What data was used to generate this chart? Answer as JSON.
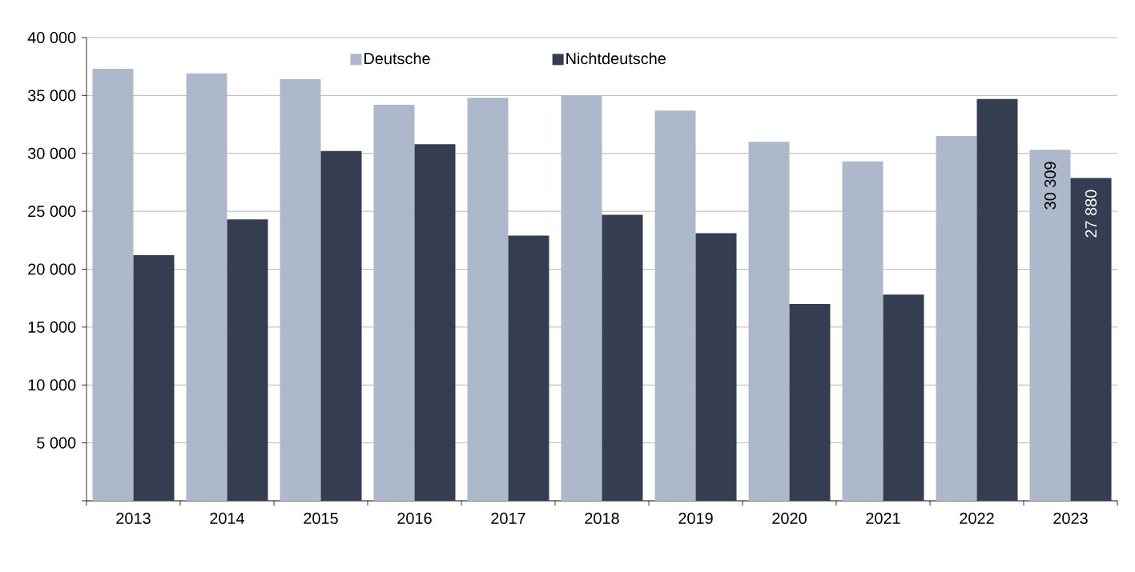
{
  "chart_data": {
    "type": "bar",
    "categories": [
      "2013",
      "2014",
      "2015",
      "2016",
      "2017",
      "2018",
      "2019",
      "2020",
      "2021",
      "2022",
      "2023"
    ],
    "series": [
      {
        "name": "Deutsche",
        "color": "#adb8ca",
        "values": [
          37300,
          36900,
          36400,
          34200,
          34800,
          35000,
          33700,
          31000,
          29300,
          31500,
          30309
        ],
        "value_labels": [
          null,
          null,
          null,
          null,
          null,
          null,
          null,
          null,
          null,
          null,
          "30 309"
        ]
      },
      {
        "name": "Nichtdeutsche",
        "color": "#343e50",
        "values": [
          21200,
          24300,
          30200,
          30800,
          22900,
          24700,
          23100,
          17000,
          17800,
          34700,
          27880
        ],
        "value_labels": [
          null,
          null,
          null,
          null,
          null,
          null,
          null,
          null,
          null,
          null,
          "27 880"
        ]
      }
    ],
    "ylim": [
      0,
      40000
    ],
    "yticks": [
      {
        "value": 0,
        "label": null
      },
      {
        "value": 5000,
        "label": "5 000"
      },
      {
        "value": 10000,
        "label": "10 000"
      },
      {
        "value": 15000,
        "label": "15 000"
      },
      {
        "value": 20000,
        "label": "20 000"
      },
      {
        "value": 25000,
        "label": "25 000"
      },
      {
        "value": 30000,
        "label": "30 000"
      },
      {
        "value": 35000,
        "label": "35 000"
      },
      {
        "value": 40000,
        "label": "40 000"
      }
    ],
    "grid": "y",
    "legend": "top"
  }
}
